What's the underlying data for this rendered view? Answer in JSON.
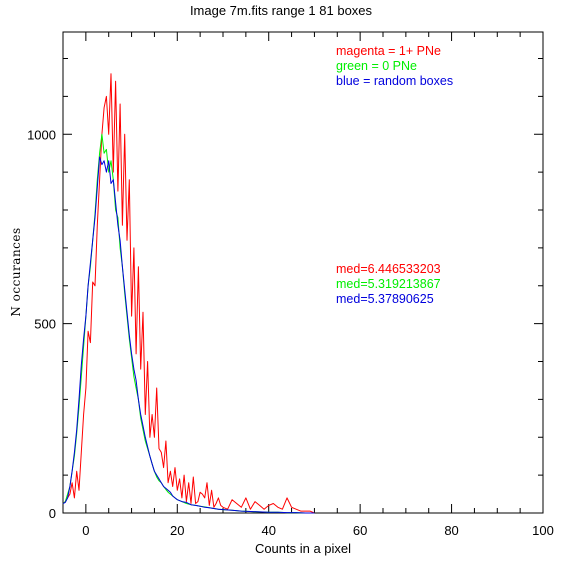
{
  "chart_data": {
    "type": "line",
    "title": "Image 7m.fits   range 1    81 boxes",
    "xlabel": "Counts in a pixel",
    "ylabel": "N  occurances",
    "xlim": [
      -5,
      100
    ],
    "ylim": [
      0,
      1270
    ],
    "x_ticks": [
      0,
      20,
      40,
      60,
      80,
      100
    ],
    "x_tick_labels": [
      "0",
      "20",
      "40",
      "60",
      "80",
      "100"
    ],
    "y_ticks": [
      0,
      500,
      1000
    ],
    "y_tick_labels": [
      "0",
      "500",
      "1000"
    ],
    "x_minor_step": 5,
    "y_minor_step": 100,
    "grid": false,
    "legend": [
      {
        "text": "magenta = 1+ PNe",
        "color": "#ff0000"
      },
      {
        "text": "green = 0 PNe",
        "color": "#00ee00"
      },
      {
        "text": "blue = random boxes",
        "color": "#0000dd"
      }
    ],
    "annotations": [
      {
        "text": "med=6.446533203",
        "color": "#ff0000"
      },
      {
        "text": "med=5.319213867",
        "color": "#00ee00"
      },
      {
        "text": "med=5.37890625",
        "color": "#0000dd"
      }
    ],
    "series": [
      {
        "color": "#ff0000",
        "x": [
          -5,
          -4.5,
          -4,
          -3.5,
          -3,
          -2.5,
          -2,
          -1.5,
          -1,
          -0.5,
          0,
          0.5,
          1,
          1.5,
          2,
          2.5,
          3,
          3.5,
          4,
          4.5,
          5,
          5.5,
          6,
          6.5,
          7,
          7.5,
          8,
          8.5,
          9,
          9.5,
          10,
          10.5,
          11,
          11.5,
          12,
          12.5,
          13,
          13.5,
          14,
          14.5,
          15,
          15.5,
          16,
          16.5,
          17,
          17.5,
          18,
          18.5,
          19,
          19.5,
          20,
          20.5,
          21,
          21.5,
          22,
          22.5,
          23,
          23.5,
          24,
          24.5,
          25,
          25.5,
          26,
          26.5,
          27,
          27.5,
          28,
          28.5,
          29,
          29.5,
          30,
          31,
          32,
          33,
          34,
          35,
          36,
          37,
          38,
          39,
          40,
          41,
          42,
          43,
          44,
          45,
          46,
          47,
          48,
          49,
          50
        ],
        "y": [
          25,
          30,
          40,
          50,
          80,
          40,
          110,
          60,
          160,
          260,
          330,
          480,
          450,
          610,
          600,
          760,
          880,
          1000,
          1070,
          1100,
          1000,
          1160,
          900,
          1140,
          850,
          1080,
          760,
          1000,
          720,
          880,
          520,
          700,
          420,
          650,
          380,
          530,
          260,
          400,
          200,
          260,
          200,
          330,
          170,
          160,
          120,
          190,
          80,
          110,
          70,
          120,
          60,
          90,
          40,
          100,
          30,
          80,
          25,
          95,
          25,
          30,
          55,
          50,
          40,
          80,
          20,
          60,
          15,
          25,
          40,
          20,
          15,
          10,
          35,
          25,
          15,
          40,
          10,
          30,
          20,
          10,
          20,
          25,
          15,
          10,
          40,
          15,
          10,
          5,
          5,
          5,
          0
        ]
      },
      {
        "color": "#00ee00",
        "x": [
          -5,
          -4.5,
          -4,
          -3.5,
          -3,
          -2.5,
          -2,
          -1.5,
          -1,
          -0.5,
          0,
          0.5,
          1,
          1.5,
          2,
          2.5,
          3,
          3.5,
          4,
          4.5,
          5,
          5.5,
          6,
          6.5,
          7,
          7.5,
          8,
          8.5,
          9,
          9.5,
          10,
          10.5,
          11,
          11.5,
          12,
          12.5,
          13,
          13.5,
          14,
          14.5,
          15,
          15.5,
          16,
          16.5,
          17,
          17.5,
          18,
          18.5,
          19,
          19.5,
          20,
          21,
          22,
          23,
          24,
          25,
          26,
          27,
          28,
          29,
          30,
          32,
          34,
          36,
          38,
          40,
          42,
          44,
          46,
          48,
          50
        ],
        "y": [
          25,
          30,
          50,
          70,
          110,
          150,
          210,
          280,
          360,
          440,
          520,
          600,
          650,
          720,
          790,
          880,
          950,
          1000,
          950,
          960,
          900,
          930,
          880,
          800,
          780,
          700,
          650,
          580,
          520,
          460,
          410,
          360,
          330,
          300,
          250,
          220,
          190,
          170,
          150,
          130,
          110,
          95,
          85,
          80,
          70,
          62,
          55,
          50,
          45,
          40,
          35,
          30,
          25,
          22,
          20,
          18,
          16,
          14,
          12,
          10,
          9,
          7,
          5,
          4,
          3,
          2,
          2,
          1,
          1,
          0,
          0
        ]
      },
      {
        "color": "#0000dd",
        "x": [
          -5,
          -4.5,
          -4,
          -3.5,
          -3,
          -2.5,
          -2,
          -1.5,
          -1,
          -0.5,
          0,
          0.5,
          1,
          1.5,
          2,
          2.5,
          3,
          3.5,
          4,
          4.5,
          5,
          5.5,
          6,
          6.5,
          7,
          7.5,
          8,
          8.5,
          9,
          9.5,
          10,
          10.5,
          11,
          11.5,
          12,
          12.5,
          13,
          13.5,
          14,
          14.5,
          15,
          15.5,
          16,
          16.5,
          17,
          17.5,
          18,
          18.5,
          19,
          19.5,
          20,
          21,
          22,
          23,
          24,
          25,
          26,
          27,
          28,
          29,
          30,
          32,
          34,
          36,
          38,
          40,
          42,
          44,
          46,
          48,
          50
        ],
        "y": [
          25,
          28,
          40,
          70,
          110,
          160,
          220,
          300,
          390,
          460,
          520,
          600,
          660,
          720,
          780,
          860,
          940,
          920,
          930,
          900,
          930,
          870,
          880,
          820,
          760,
          720,
          650,
          590,
          530,
          470,
          420,
          380,
          350,
          300,
          260,
          230,
          200,
          175,
          150,
          130,
          110,
          100,
          90,
          80,
          70,
          65,
          60,
          55,
          45,
          40,
          35,
          30,
          28,
          22,
          20,
          18,
          15,
          14,
          12,
          10,
          9,
          7,
          5,
          4,
          3,
          2,
          2,
          1,
          1,
          0,
          0
        ]
      }
    ]
  }
}
